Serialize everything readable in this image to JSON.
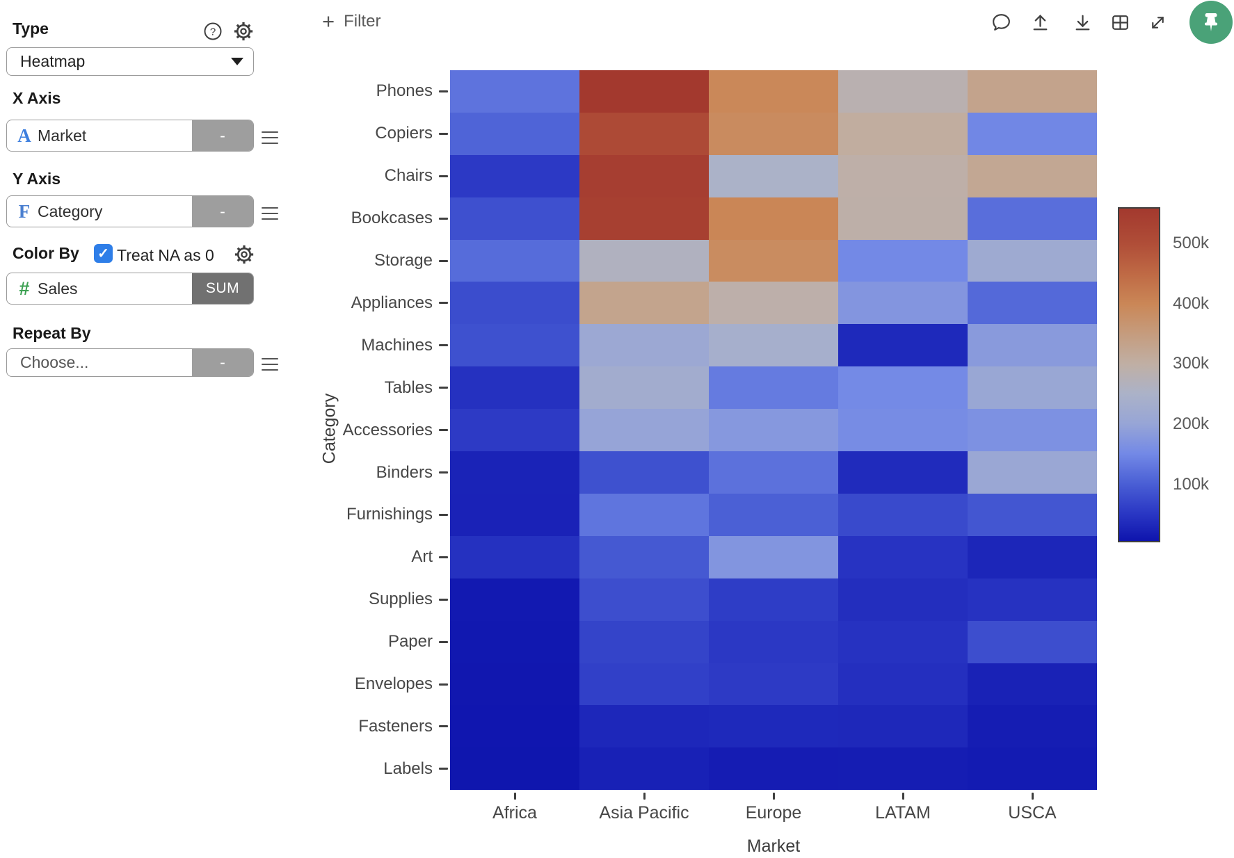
{
  "sidebar": {
    "type_label": "Type",
    "type_value": "Heatmap",
    "x_axis": {
      "label": "X Axis",
      "field": "Market",
      "field_type_glyph": "A",
      "minus_label": "-"
    },
    "y_axis": {
      "label": "Y Axis",
      "field": "Category",
      "field_type_glyph": "F",
      "minus_label": "-"
    },
    "color_by": {
      "label": "Color By",
      "checkbox_label": "Treat NA as 0",
      "checked": true,
      "check_glyph": "✓",
      "field": "Sales",
      "field_type_glyph": "#",
      "aggregation": "SUM"
    },
    "repeat_by": {
      "label": "Repeat By",
      "placeholder": "Choose...",
      "minus_label": "-"
    },
    "colors": {
      "accent_blue": "#2e7ee8",
      "dimension_blue": "#3c7ede",
      "measure_green": "#3da153",
      "button_gray": "#9e9e9e",
      "agg_gray": "#717171"
    }
  },
  "toolbar": {
    "plus_glyph": "+",
    "filter_label": "Filter",
    "icon_color": "#3f3f3f",
    "pin_green": "#4aa278",
    "icons": [
      "comment-icon",
      "upload-icon",
      "download-icon",
      "grid-icon",
      "expand-icon",
      "pin-icon"
    ]
  },
  "chart_data": {
    "type": "heatmap",
    "title": "",
    "xlabel": "Market",
    "ylabel": "Category",
    "x": [
      "Africa",
      "Asia Pacific",
      "Europe",
      "LATAM",
      "USCA"
    ],
    "y": [
      "Phones",
      "Copiers",
      "Chairs",
      "Bookcases",
      "Storage",
      "Appliances",
      "Machines",
      "Tables",
      "Accessories",
      "Binders",
      "Furnishings",
      "Art",
      "Supplies",
      "Paper",
      "Envelopes",
      "Fasteners",
      "Labels"
    ],
    "values": [
      [
        124000,
        560000,
        398000,
        283000,
        331000
      ],
      [
        106000,
        512000,
        390000,
        306000,
        148000
      ],
      [
        53000,
        545000,
        250000,
        295000,
        322000
      ],
      [
        81000,
        540000,
        402000,
        294000,
        118000
      ],
      [
        115000,
        262000,
        388000,
        150000,
        218000
      ],
      [
        77000,
        330000,
        292000,
        172000,
        112000
      ],
      [
        82000,
        212000,
        237000,
        31000,
        181000
      ],
      [
        42000,
        228000,
        133000,
        151000,
        206000
      ],
      [
        54000,
        198000,
        176000,
        156000,
        164000
      ],
      [
        24000,
        82000,
        122000,
        34000,
        208000
      ],
      [
        23000,
        126000,
        101000,
        74000,
        89000
      ],
      [
        42000,
        92000,
        171000,
        45000,
        27000
      ],
      [
        11000,
        79000,
        57000,
        38000,
        43000
      ],
      [
        9000,
        66000,
        51000,
        44000,
        79000
      ],
      [
        8500,
        61000,
        54000,
        40000,
        22000
      ],
      [
        7000,
        29000,
        31000,
        30000,
        16000
      ],
      [
        6000,
        21000,
        15000,
        16000,
        13000
      ]
    ],
    "colorbar": {
      "vmin": 4000,
      "vmax": 560000,
      "ticks": [
        "500k",
        "400k",
        "300k",
        "200k",
        "100k"
      ],
      "tick_values": [
        500000,
        400000,
        300000,
        200000,
        100000
      ]
    },
    "colormap": [
      {
        "v": 4000,
        "c": "#0E14AD"
      },
      {
        "v": 50000,
        "c": "#2A37C4"
      },
      {
        "v": 100000,
        "c": "#4A5FD5"
      },
      {
        "v": 150000,
        "c": "#7389E6"
      },
      {
        "v": 200000,
        "c": "#97A5D6"
      },
      {
        "v": 250000,
        "c": "#ABB2C8"
      },
      {
        "v": 300000,
        "c": "#C0AFA4"
      },
      {
        "v": 350000,
        "c": "#C59C7E"
      },
      {
        "v": 400000,
        "c": "#CA8757"
      },
      {
        "v": 450000,
        "c": "#BF6A45"
      },
      {
        "v": 500000,
        "c": "#B04E38"
      },
      {
        "v": 560000,
        "c": "#A3392E"
      }
    ],
    "legend_position": "right",
    "grid": false
  }
}
